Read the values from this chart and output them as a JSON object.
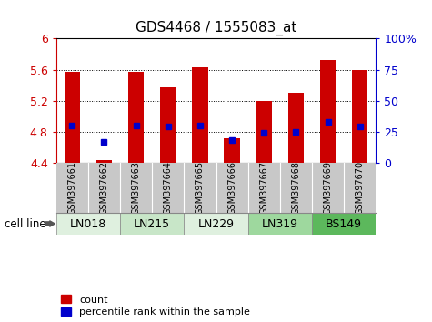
{
  "title": "GDS4468 / 1555083_at",
  "samples": [
    "GSM397661",
    "GSM397662",
    "GSM397663",
    "GSM397664",
    "GSM397665",
    "GSM397666",
    "GSM397667",
    "GSM397668",
    "GSM397669",
    "GSM397670"
  ],
  "count_values": [
    5.57,
    4.43,
    5.57,
    5.37,
    5.63,
    4.72,
    5.2,
    5.3,
    5.72,
    5.6
  ],
  "percentile_values": [
    30,
    17,
    30,
    29,
    30,
    18,
    24,
    25,
    33,
    29
  ],
  "cell_lines": [
    {
      "name": "LN018",
      "start": 0,
      "end": 2,
      "color": "#dff0df"
    },
    {
      "name": "LN215",
      "start": 2,
      "end": 4,
      "color": "#c8e6c8"
    },
    {
      "name": "LN229",
      "start": 4,
      "end": 6,
      "color": "#dff0df"
    },
    {
      "name": "LN319",
      "start": 6,
      "end": 8,
      "color": "#9ed89e"
    },
    {
      "name": "BS149",
      "start": 8,
      "end": 10,
      "color": "#5cb85c"
    }
  ],
  "ymin": 4.4,
  "ymax": 6.0,
  "yticks": [
    4.4,
    4.8,
    5.2,
    5.6,
    6.0
  ],
  "ytick_labels": [
    "4.4",
    "4.8",
    "5.2",
    "5.6",
    "6"
  ],
  "y2min": 0,
  "y2max": 100,
  "y2ticks": [
    0,
    25,
    50,
    75,
    100
  ],
  "y2tick_labels": [
    "0",
    "25",
    "50",
    "75",
    "100%"
  ],
  "bar_color": "#cc0000",
  "percentile_color": "#0000cc",
  "grid_yticks": [
    4.8,
    5.2,
    5.6
  ],
  "left_axis_color": "#cc0000",
  "right_axis_color": "#0000cc",
  "bar_width": 0.5,
  "cell_line_label": "cell line",
  "xlabel_gray": "#c8c8c8",
  "legend_count": "count",
  "legend_pct": "percentile rank within the sample"
}
